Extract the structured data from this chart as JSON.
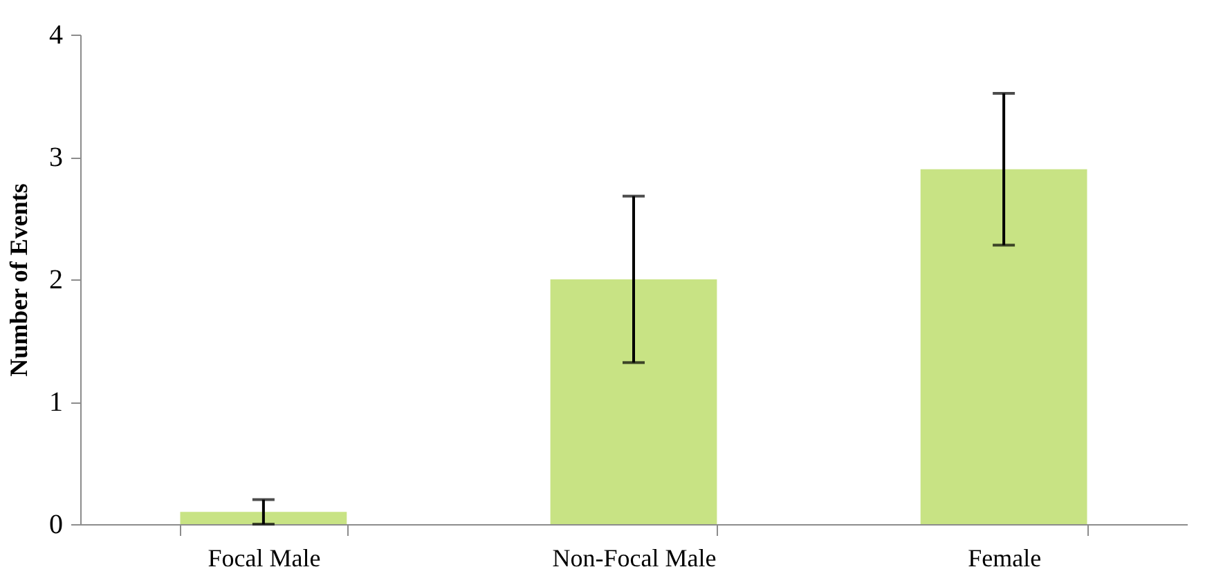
{
  "chart_data": {
    "type": "bar",
    "ylabel": "Number of Events",
    "categories": [
      "Focal Male",
      "Non-Focal Male",
      "Female"
    ],
    "values": [
      0.1,
      2.0,
      2.9
    ],
    "errors": [
      0.1,
      0.68,
      0.62
    ],
    "color": "#c8e384",
    "ylim": [
      0,
      4
    ],
    "yticks": [
      0,
      1,
      2,
      3,
      4
    ],
    "grid": false
  }
}
